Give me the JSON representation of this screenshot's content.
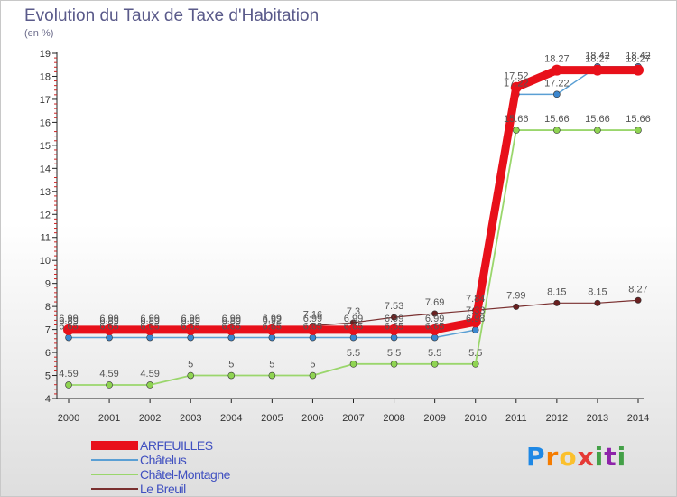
{
  "header": {
    "title": "Evolution du Taux de Taxe d'Habitation",
    "subtitle": "(en %)"
  },
  "chart_data": {
    "type": "line",
    "title": "Evolution du Taux de Taxe d'Habitation",
    "ylabel": "(en %)",
    "xlabel": "",
    "categories": [
      "2000",
      "2001",
      "2002",
      "2003",
      "2004",
      "2005",
      "2006",
      "2007",
      "2008",
      "2009",
      "2010",
      "2011",
      "2012",
      "2013",
      "2014"
    ],
    "ylim": [
      4,
      19
    ],
    "yticks": [
      4,
      5,
      6,
      7,
      8,
      9,
      10,
      11,
      12,
      13,
      14,
      15,
      16,
      17,
      18,
      19
    ],
    "grid": false,
    "legend_position": "bottom-left",
    "series": [
      {
        "name": "ARFEUILLES",
        "color": "#e8101a",
        "values": [
          6.99,
          6.99,
          6.99,
          6.99,
          6.99,
          6.99,
          6.99,
          6.99,
          6.99,
          6.99,
          7.33,
          17.52,
          18.27,
          18.27,
          18.27
        ],
        "labels": [
          "6.99",
          "6.99",
          "6.99",
          "6.99",
          "6.99",
          "6.99",
          "6.99",
          "6.99",
          "6.99",
          "6.99",
          "7.33",
          "17.52",
          "18.27",
          "18.27",
          "18.27"
        ]
      },
      {
        "name": "Châtelus",
        "color": "#5a9fd4",
        "values": [
          6.65,
          6.65,
          6.65,
          6.65,
          6.65,
          6.65,
          6.65,
          6.65,
          6.65,
          6.65,
          6.98,
          17.22,
          17.22,
          18.42,
          18.42
        ],
        "labels": [
          "6.65",
          "6.65",
          "6.65",
          "6.65",
          "6.65",
          "6.65",
          "6.65",
          "6.65",
          "6.65",
          "6.65",
          "6.98",
          "17.22",
          "17.22",
          "18.42",
          "18.42"
        ]
      },
      {
        "name": "Châtel-Montagne",
        "color": "#9ad66c",
        "values": [
          4.59,
          4.59,
          4.59,
          5,
          5,
          5,
          5,
          5.5,
          5.5,
          5.5,
          5.5,
          15.66,
          15.66,
          15.66,
          15.66
        ],
        "labels": [
          "4.59",
          "4.59",
          "4.59",
          "5",
          "5",
          "5",
          "5",
          "5.5",
          "5.5",
          "5.5",
          "5.5",
          "15.66",
          "15.66",
          "15.66",
          "15.66"
        ]
      },
      {
        "name": "Le Breuil",
        "color": "#7a3030",
        "values": [
          6.89,
          6.89,
          6.89,
          6.89,
          6.89,
          6.92,
          7.16,
          7.3,
          7.53,
          7.69,
          7.84,
          7.99,
          8.15,
          8.15,
          8.27
        ],
        "labels": [
          "6.89",
          "6.89",
          "6.89",
          "6.89",
          "6.89",
          "6.92",
          "7.16",
          "7.3",
          "7.53",
          "7.69",
          "7.84",
          "7.99",
          "8.15",
          "8.15",
          "8.27"
        ]
      }
    ]
  },
  "legend": {
    "items": [
      {
        "label": "ARFEUILLES",
        "color": "#e8101a"
      },
      {
        "label": "Châtelus",
        "color": "#5a9fd4"
      },
      {
        "label": "Châtel-Montagne",
        "color": "#9ad66c"
      },
      {
        "label": "Le Breuil",
        "color": "#7a3030"
      }
    ]
  },
  "logo": {
    "p": "P",
    "r": "r",
    "o": "o",
    "x": "x",
    "i": "i",
    "t": "t",
    "i2": "i"
  }
}
